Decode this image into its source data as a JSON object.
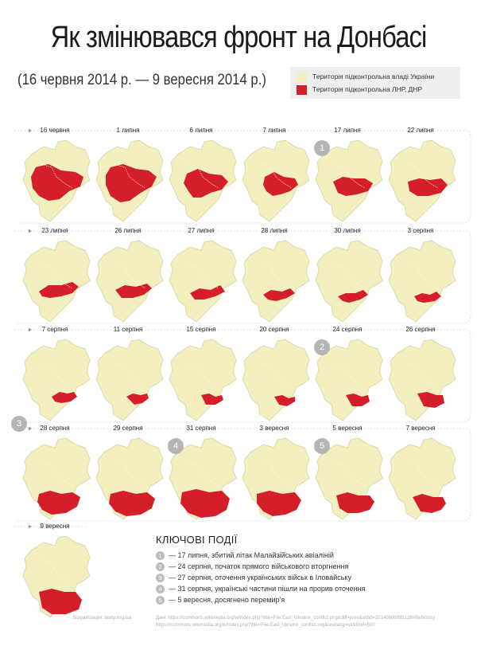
{
  "title": "Як змінювався фронт на Донбасі",
  "subtitle": "(16 червня 2014 р. — 9 вересня 2014 р.)",
  "legend": [
    {
      "label": "Територія підконтрольна владі України",
      "color": "#f3efbf"
    },
    {
      "label": "Територія підконтрольна ЛНР, ДНР",
      "color": "#d41f2a"
    }
  ],
  "colors": {
    "ukraine": "#f3efbf",
    "separatist": "#d41f2a",
    "marker": "#b5b5b5",
    "timeline": "#d6d6d6"
  },
  "rows": [
    {
      "markers": [
        {
          "col": 4,
          "label": "1"
        }
      ],
      "dates": [
        "16 червня",
        "1 липня",
        "6 липня",
        "7 липня",
        "17 липня",
        "22 липня"
      ]
    },
    {
      "markers": [],
      "dates": [
        "23 липня",
        "26 липня",
        "27 липня",
        "28 липня",
        "30 липня",
        "3 серпня"
      ]
    },
    {
      "markers": [
        {
          "col": 4,
          "label": "2"
        }
      ],
      "dates": [
        "7 серпня",
        "11 серпня",
        "15 серпня",
        "20 серпня",
        "24 серпня",
        "26 серпня"
      ]
    },
    {
      "markers": [
        {
          "col": -1,
          "label": "3"
        },
        {
          "col": 2,
          "label": "4"
        },
        {
          "col": 4,
          "label": "5"
        }
      ],
      "dates": [
        "28 серпня",
        "29 серпня",
        "31 серпня",
        "3 вересня",
        "5 вересня",
        "7 вересня"
      ]
    },
    {
      "markers": [],
      "dates": [
        "9 вересня"
      ]
    }
  ],
  "events_title": "КЛЮЧОВІ ПОДІЇ",
  "events": [
    {
      "num": "1",
      "text": "— 17 липня, збитий літак Малайзійських авіаліній"
    },
    {
      "num": "2",
      "text": "— 24 серпня, початок прямого військового вторгнення"
    },
    {
      "num": "3",
      "text": "— 27 серпня, оточення українських військ в Іловайську"
    },
    {
      "num": "4",
      "text": "— 31 серпня, українські частини пішли на прорив оточення"
    },
    {
      "num": "5",
      "text": "— 5 вересня, досягнено перемир'я"
    }
  ],
  "credit": "Візуалізація: texty.org.ua",
  "source_lines": [
    "Дані: https://commons.wikimedia.org/w/index.php?title=File:East_Ukraine_conflict.png&diff=prev&oldid=20140806095128#filehistory",
    "https://commons.wikimedia.org/w/index.php?title=File:East_Ukraine_conflict.svg&uselang=uk&limit=500"
  ]
}
